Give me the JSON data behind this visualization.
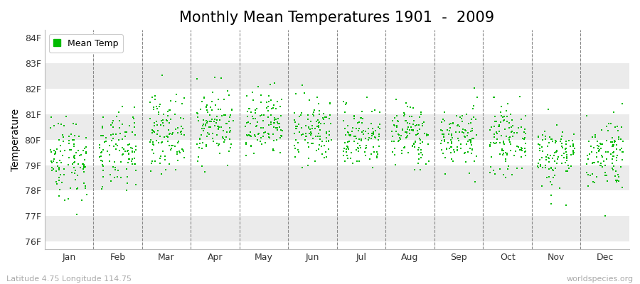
{
  "title": "Monthly Mean Temperatures 1901  -  2009",
  "ylabel": "Temperature",
  "xlabel_labels": [
    "Jan",
    "Feb",
    "Mar",
    "Apr",
    "May",
    "Jun",
    "Jul",
    "Aug",
    "Sep",
    "Oct",
    "Nov",
    "Dec"
  ],
  "ytick_labels": [
    "76F",
    "77F",
    "78F",
    "79F",
    "80F",
    "81F",
    "82F",
    "83F",
    "84F"
  ],
  "ytick_values": [
    76,
    77,
    78,
    79,
    80,
    81,
    82,
    83,
    84
  ],
  "ylim": [
    75.7,
    84.3
  ],
  "legend_label": "Mean Temp",
  "dot_color": "#00bb00",
  "dot_size": 3,
  "background_color": "#ffffff",
  "plot_bg_color": "#ffffff",
  "stripe_color_light": "#ffffff",
  "stripe_color_dark": "#ebebeb",
  "footer_left": "Latitude 4.75 Longitude 114.75",
  "footer_right": "worldspecies.org",
  "title_fontsize": 15,
  "axis_label_fontsize": 10,
  "tick_fontsize": 9,
  "footer_fontsize": 8,
  "seed": 42,
  "n_years": 109,
  "monthly_means": [
    79.3,
    79.5,
    80.3,
    80.6,
    80.5,
    80.3,
    80.1,
    80.2,
    80.1,
    80.0,
    79.4,
    79.5
  ],
  "monthly_stds": [
    0.85,
    0.75,
    0.72,
    0.7,
    0.68,
    0.62,
    0.6,
    0.6,
    0.6,
    0.62,
    0.65,
    0.72
  ]
}
